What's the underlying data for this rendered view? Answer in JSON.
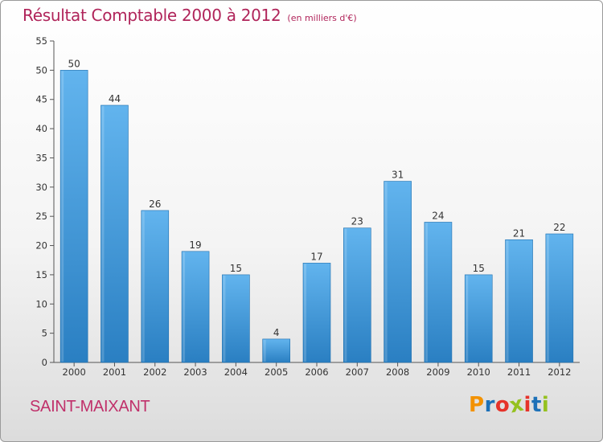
{
  "header": {
    "title": "Résultat Comptable 2000 à 2012",
    "subtitle": "(en milliers d'€)"
  },
  "footer": {
    "commune": "SAINT-MAIXANT",
    "logo": {
      "letters": [
        "P",
        "r",
        "o",
        "x",
        "i",
        "t",
        "i"
      ],
      "colors": [
        "#f39200",
        "#1d71b8",
        "#e6332a",
        "#95c11f",
        "#e6332a",
        "#1d71b8",
        "#95c11f"
      ]
    }
  },
  "colors": {
    "bar_light": "#62b4ee",
    "bar_dark": "#2a7fc2",
    "accent": "#b0245a"
  },
  "chart_data": {
    "type": "bar",
    "title": "Résultat Comptable 2000 à 2012",
    "xlabel": "",
    "ylabel": "",
    "categories": [
      "2000",
      "2001",
      "2002",
      "2003",
      "2004",
      "2005",
      "2006",
      "2007",
      "2008",
      "2009",
      "2010",
      "2011",
      "2012"
    ],
    "values": [
      50,
      44,
      26,
      19,
      15,
      4,
      17,
      23,
      31,
      24,
      15,
      21,
      22
    ],
    "ylim": [
      0,
      55
    ],
    "yticks": [
      0,
      5,
      10,
      15,
      20,
      25,
      30,
      35,
      40,
      45,
      50,
      55
    ],
    "grid": false,
    "data_labels": true
  }
}
